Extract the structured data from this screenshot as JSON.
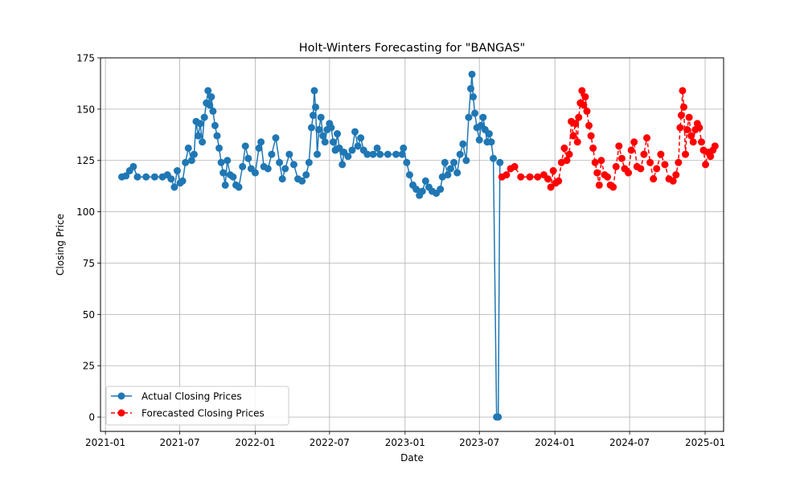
{
  "chart_data": {
    "type": "line",
    "title": "Holt-Winters Forecasting for \"BANGAS\"",
    "xlabel": "Date",
    "ylabel": "Closing Price",
    "xlim": [
      "2020-12-20",
      "2025-02-15"
    ],
    "ylim": [
      -7,
      175
    ],
    "x_ticks": [
      "2021-01",
      "2021-07",
      "2022-01",
      "2022-07",
      "2023-01",
      "2023-07",
      "2024-01",
      "2024-07",
      "2025-01"
    ],
    "y_ticks": [
      0,
      25,
      50,
      75,
      100,
      125,
      150,
      175
    ],
    "grid": true,
    "legend_position": "lower-left",
    "series": [
      {
        "name": "Actual Closing Prices",
        "color": "#1f77b4",
        "linestyle": "solid",
        "marker": "circle",
        "points": [
          [
            "2021-02-10",
            117
          ],
          [
            "2021-02-20",
            117.5
          ],
          [
            "2021-03-01",
            120
          ],
          [
            "2021-03-10",
            122
          ],
          [
            "2021-03-20",
            117
          ],
          [
            "2021-04-10",
            117
          ],
          [
            "2021-05-01",
            117
          ],
          [
            "2021-05-20",
            117
          ],
          [
            "2021-06-01",
            118
          ],
          [
            "2021-06-10",
            116
          ],
          [
            "2021-06-18",
            112
          ],
          [
            "2021-06-25",
            120
          ],
          [
            "2021-07-02",
            114
          ],
          [
            "2021-07-08",
            115
          ],
          [
            "2021-07-15",
            124
          ],
          [
            "2021-07-22",
            131
          ],
          [
            "2021-07-30",
            125
          ],
          [
            "2021-08-05",
            128
          ],
          [
            "2021-08-10",
            144
          ],
          [
            "2021-08-15",
            137
          ],
          [
            "2021-08-20",
            143
          ],
          [
            "2021-08-25",
            134
          ],
          [
            "2021-08-30",
            146
          ],
          [
            "2021-09-04",
            153
          ],
          [
            "2021-09-08",
            159
          ],
          [
            "2021-09-12",
            152
          ],
          [
            "2021-09-16",
            156
          ],
          [
            "2021-09-20",
            149
          ],
          [
            "2021-09-25",
            142
          ],
          [
            "2021-09-30",
            137
          ],
          [
            "2021-10-05",
            131
          ],
          [
            "2021-10-10",
            124
          ],
          [
            "2021-10-15",
            119
          ],
          [
            "2021-10-20",
            113
          ],
          [
            "2021-10-25",
            125
          ],
          [
            "2021-11-01",
            118
          ],
          [
            "2021-11-08",
            117
          ],
          [
            "2021-11-15",
            113
          ],
          [
            "2021-11-22",
            112
          ],
          [
            "2021-12-01",
            122
          ],
          [
            "2021-12-08",
            132
          ],
          [
            "2021-12-15",
            126
          ],
          [
            "2021-12-22",
            121
          ],
          [
            "2022-01-01",
            119
          ],
          [
            "2022-01-10",
            131
          ],
          [
            "2022-01-15",
            134
          ],
          [
            "2022-01-22",
            122
          ],
          [
            "2022-02-01",
            121
          ],
          [
            "2022-02-10",
            128
          ],
          [
            "2022-02-20",
            136
          ],
          [
            "2022-03-01",
            124
          ],
          [
            "2022-03-08",
            116
          ],
          [
            "2022-03-15",
            121
          ],
          [
            "2022-03-25",
            128
          ],
          [
            "2022-04-05",
            123
          ],
          [
            "2022-04-15",
            116
          ],
          [
            "2022-04-25",
            115
          ],
          [
            "2022-05-05",
            118
          ],
          [
            "2022-05-12",
            124
          ],
          [
            "2022-05-18",
            141
          ],
          [
            "2022-05-22",
            147
          ],
          [
            "2022-05-25",
            159
          ],
          [
            "2022-05-28",
            151
          ],
          [
            "2022-06-01",
            128
          ],
          [
            "2022-06-05",
            140
          ],
          [
            "2022-06-10",
            146
          ],
          [
            "2022-06-15",
            137
          ],
          [
            "2022-06-20",
            134
          ],
          [
            "2022-06-25",
            140
          ],
          [
            "2022-07-01",
            143
          ],
          [
            "2022-07-05",
            141
          ],
          [
            "2022-07-10",
            134
          ],
          [
            "2022-07-15",
            130
          ],
          [
            "2022-07-20",
            138
          ],
          [
            "2022-07-25",
            131
          ],
          [
            "2022-08-01",
            123
          ],
          [
            "2022-08-05",
            129
          ],
          [
            "2022-08-15",
            127
          ],
          [
            "2022-08-25",
            130
          ],
          [
            "2022-09-01",
            139
          ],
          [
            "2022-09-08",
            132
          ],
          [
            "2022-09-15",
            136
          ],
          [
            "2022-09-22",
            130
          ],
          [
            "2022-10-01",
            128
          ],
          [
            "2022-10-15",
            128
          ],
          [
            "2022-10-25",
            131
          ],
          [
            "2022-11-01",
            128
          ],
          [
            "2022-11-20",
            128
          ],
          [
            "2022-12-10",
            128
          ],
          [
            "2022-12-25",
            128
          ],
          [
            "2022-12-28",
            131
          ],
          [
            "2023-01-05",
            124
          ],
          [
            "2023-01-12",
            118
          ],
          [
            "2023-01-20",
            113
          ],
          [
            "2023-01-28",
            111
          ],
          [
            "2023-02-05",
            108
          ],
          [
            "2023-02-12",
            110
          ],
          [
            "2023-02-20",
            115
          ],
          [
            "2023-02-28",
            112
          ],
          [
            "2023-03-08",
            110
          ],
          [
            "2023-03-18",
            109
          ],
          [
            "2023-03-28",
            111
          ],
          [
            "2023-04-02",
            117
          ],
          [
            "2023-04-08",
            124
          ],
          [
            "2023-04-15",
            118
          ],
          [
            "2023-04-22",
            121
          ],
          [
            "2023-04-30",
            124
          ],
          [
            "2023-05-08",
            119
          ],
          [
            "2023-05-15",
            128
          ],
          [
            "2023-05-22",
            133
          ],
          [
            "2023-05-30",
            125
          ],
          [
            "2023-06-05",
            146
          ],
          [
            "2023-06-10",
            160
          ],
          [
            "2023-06-13",
            167
          ],
          [
            "2023-06-16",
            156
          ],
          [
            "2023-06-20",
            148
          ],
          [
            "2023-06-25",
            141
          ],
          [
            "2023-07-01",
            135
          ],
          [
            "2023-07-05",
            142
          ],
          [
            "2023-07-10",
            146
          ],
          [
            "2023-07-15",
            140
          ],
          [
            "2023-07-20",
            134
          ],
          [
            "2023-07-25",
            138
          ],
          [
            "2023-07-30",
            134
          ],
          [
            "2023-08-04",
            126
          ],
          [
            "2023-08-12",
            0
          ],
          [
            "2023-08-16",
            0
          ],
          [
            "2023-08-20",
            124
          ]
        ]
      },
      {
        "name": "Forecasted Closing Prices",
        "color": "#ff0000",
        "linestyle": "dashed",
        "marker": "circle",
        "points": [
          [
            "2023-08-25",
            117
          ],
          [
            "2023-09-05",
            118
          ],
          [
            "2023-09-15",
            121
          ],
          [
            "2023-09-25",
            122
          ],
          [
            "2023-10-10",
            117
          ],
          [
            "2023-11-01",
            117
          ],
          [
            "2023-11-20",
            117
          ],
          [
            "2023-12-05",
            118
          ],
          [
            "2023-12-15",
            116
          ],
          [
            "2023-12-22",
            112
          ],
          [
            "2023-12-28",
            120
          ],
          [
            "2024-01-03",
            114
          ],
          [
            "2024-01-10",
            115
          ],
          [
            "2024-01-17",
            124
          ],
          [
            "2024-01-24",
            131
          ],
          [
            "2024-01-30",
            125
          ],
          [
            "2024-02-05",
            128
          ],
          [
            "2024-02-10",
            144
          ],
          [
            "2024-02-15",
            137
          ],
          [
            "2024-02-20",
            143
          ],
          [
            "2024-02-25",
            134
          ],
          [
            "2024-02-28",
            146
          ],
          [
            "2024-03-03",
            153
          ],
          [
            "2024-03-07",
            159
          ],
          [
            "2024-03-11",
            152
          ],
          [
            "2024-03-15",
            156
          ],
          [
            "2024-03-19",
            149
          ],
          [
            "2024-03-24",
            142
          ],
          [
            "2024-03-29",
            137
          ],
          [
            "2024-04-03",
            131
          ],
          [
            "2024-04-08",
            124
          ],
          [
            "2024-04-13",
            119
          ],
          [
            "2024-04-18",
            113
          ],
          [
            "2024-04-23",
            125
          ],
          [
            "2024-05-01",
            118
          ],
          [
            "2024-05-08",
            117
          ],
          [
            "2024-05-15",
            113
          ],
          [
            "2024-05-22",
            112
          ],
          [
            "2024-05-29",
            122
          ],
          [
            "2024-06-05",
            132
          ],
          [
            "2024-06-12",
            126
          ],
          [
            "2024-06-19",
            121
          ],
          [
            "2024-06-28",
            119
          ],
          [
            "2024-07-05",
            130
          ],
          [
            "2024-07-12",
            134
          ],
          [
            "2024-07-19",
            122
          ],
          [
            "2024-07-28",
            121
          ],
          [
            "2024-08-05",
            128
          ],
          [
            "2024-08-12",
            136
          ],
          [
            "2024-08-20",
            124
          ],
          [
            "2024-08-28",
            116
          ],
          [
            "2024-09-05",
            121
          ],
          [
            "2024-09-15",
            128
          ],
          [
            "2024-09-25",
            123
          ],
          [
            "2024-10-05",
            116
          ],
          [
            "2024-10-15",
            115
          ],
          [
            "2024-10-22",
            118
          ],
          [
            "2024-10-28",
            124
          ],
          [
            "2024-11-01",
            141
          ],
          [
            "2024-11-04",
            147
          ],
          [
            "2024-11-07",
            159
          ],
          [
            "2024-11-10",
            151
          ],
          [
            "2024-11-14",
            128
          ],
          [
            "2024-11-18",
            140
          ],
          [
            "2024-11-23",
            146
          ],
          [
            "2024-11-28",
            137
          ],
          [
            "2024-12-03",
            134
          ],
          [
            "2024-12-08",
            140
          ],
          [
            "2024-12-13",
            143
          ],
          [
            "2024-12-18",
            141
          ],
          [
            "2024-12-23",
            134
          ],
          [
            "2024-12-28",
            130
          ],
          [
            "2025-01-02",
            123
          ],
          [
            "2025-01-08",
            129
          ],
          [
            "2025-01-14",
            127
          ],
          [
            "2025-01-20",
            130
          ],
          [
            "2025-01-25",
            132
          ]
        ]
      }
    ]
  }
}
